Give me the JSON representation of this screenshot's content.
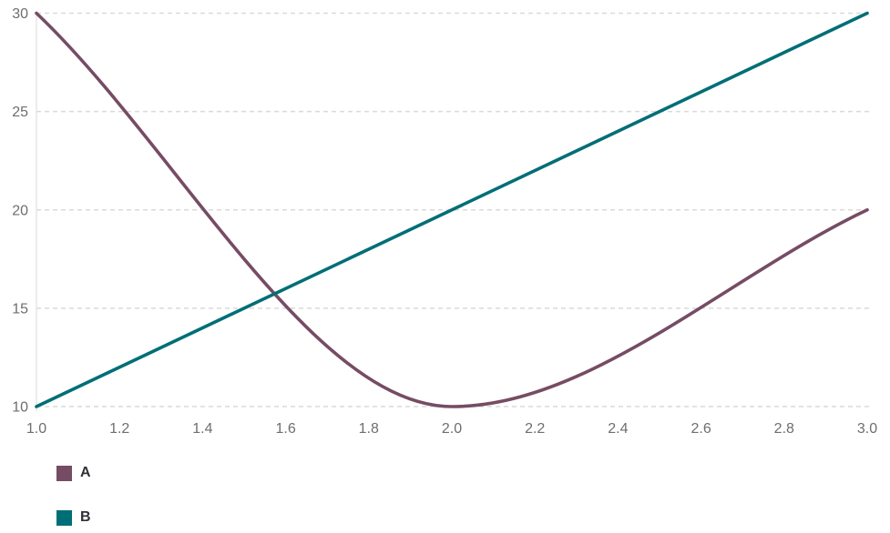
{
  "chart_data": {
    "type": "line",
    "title": "",
    "xlabel": "",
    "ylabel": "",
    "x": [
      1,
      2,
      3
    ],
    "series": [
      {
        "name": "A",
        "color": "#764C64",
        "values": [
          30,
          10,
          20
        ]
      },
      {
        "name": "B",
        "color": "#006E76",
        "values": [
          10,
          20,
          30
        ]
      }
    ],
    "curve": "monotone-cubic",
    "xlim": [
      1.0,
      3.0
    ],
    "ylim": [
      10,
      30
    ],
    "xticks": {
      "values": [
        1.0,
        1.2,
        1.4,
        1.6,
        1.8,
        2.0,
        2.2,
        2.4,
        2.6,
        2.8,
        3.0
      ],
      "labels": [
        "1.0",
        "1.2",
        "1.4",
        "1.6",
        "1.8",
        "2.0",
        "2.2",
        "2.4",
        "2.6",
        "2.8",
        "3.0"
      ]
    },
    "yticks": {
      "values": [
        10,
        15,
        20,
        25,
        30
      ],
      "labels": [
        "10",
        "15",
        "20",
        "25",
        "30"
      ]
    },
    "grid": {
      "horizontal": true,
      "vertical": false,
      "style": "dashed",
      "color": "#dadada"
    },
    "axis_color": "#e4e4e4",
    "tick_label_color": "#6e6e6e",
    "tick_label_size": 16,
    "line_width": 3.6,
    "legend": {
      "position": "bottom-left",
      "orientation": "vertical",
      "label_color": "#303036"
    }
  }
}
